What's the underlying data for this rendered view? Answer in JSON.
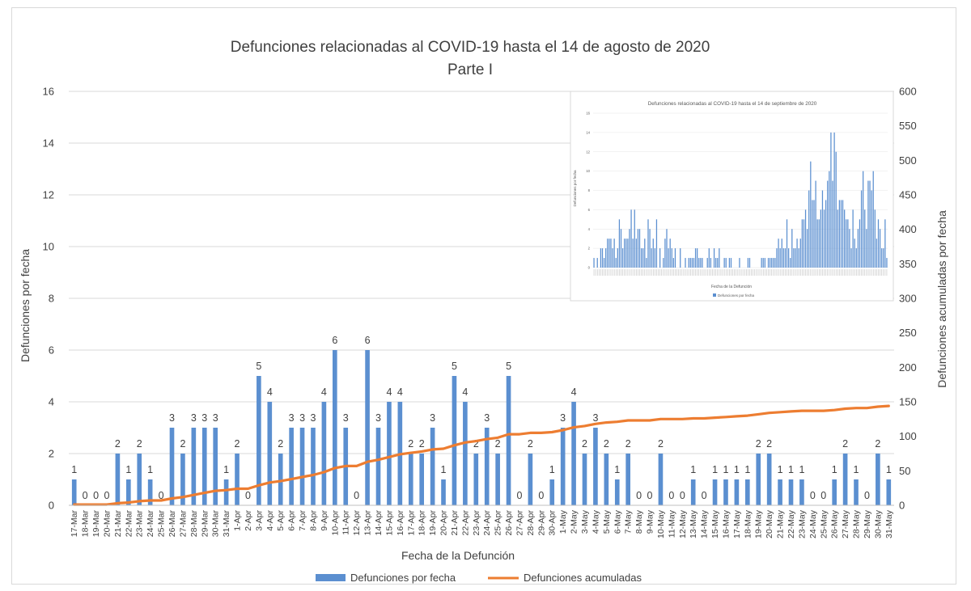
{
  "chart_data": {
    "type": "bar",
    "title": "Defunciones relacionadas al COVID-19 hasta el 14 de agosto de 2020",
    "subtitle": "Parte I",
    "xlabel": "Fecha de la Defunción",
    "ylabel": "Defunciones por fecha",
    "y2label": "Defunciones acumuladas por fecha",
    "ylim": [
      0,
      16
    ],
    "y_ticks": [
      0,
      2,
      4,
      6,
      8,
      10,
      12,
      14,
      16
    ],
    "y2lim": [
      0,
      600
    ],
    "y2_ticks": [
      0,
      50,
      100,
      150,
      200,
      250,
      300,
      350,
      400,
      450,
      500,
      550,
      600
    ],
    "grid": true,
    "legend_position": "bottom",
    "colors": {
      "bars": "#5b8fd0",
      "line": "#ed7d31",
      "grid": "#d9d9d9",
      "text": "#404040"
    },
    "categories": [
      "17-Mar",
      "18-Mar",
      "19-Mar",
      "20-Mar",
      "21-Mar",
      "22-Mar",
      "23-Mar",
      "24-Mar",
      "25-Mar",
      "26-Mar",
      "27-Mar",
      "28-Mar",
      "29-Mar",
      "30-Mar",
      "31-Mar",
      "1-Apr",
      "2-Apr",
      "3-Apr",
      "4-Apr",
      "5-Apr",
      "6-Apr",
      "7-Apr",
      "8-Apr",
      "9-Apr",
      "10-Apr",
      "11-Apr",
      "12-Apr",
      "13-Apr",
      "14-Apr",
      "15-Apr",
      "16-Apr",
      "17-Apr",
      "18-Apr",
      "19-Apr",
      "20-Apr",
      "21-Apr",
      "22-Apr",
      "23-Apr",
      "24-Apr",
      "25-Apr",
      "26-Apr",
      "27-Apr",
      "28-Apr",
      "29-Apr",
      "30-Apr",
      "1-May",
      "2-May",
      "3-May",
      "4-May",
      "5-May",
      "6-May",
      "7-May",
      "8-May",
      "9-May",
      "10-May",
      "11-May",
      "12-May",
      "13-May",
      "14-May",
      "15-May",
      "16-May",
      "17-May",
      "18-May",
      "19-May",
      "20-May",
      "21-May",
      "22-May",
      "23-May",
      "24-May",
      "25-May",
      "26-May",
      "27-May",
      "28-May",
      "29-May",
      "30-May",
      "31-May"
    ],
    "series": [
      {
        "name": "Defunciones por fecha",
        "type": "bar",
        "axis": "left",
        "values": [
          1,
          0,
          0,
          0,
          2,
          1,
          2,
          1,
          0,
          3,
          2,
          3,
          3,
          3,
          1,
          2,
          0,
          5,
          4,
          2,
          3,
          3,
          3,
          4,
          6,
          3,
          0,
          6,
          3,
          4,
          4,
          2,
          2,
          3,
          1,
          5,
          4,
          2,
          3,
          2,
          5,
          0,
          2,
          0,
          1,
          3,
          4,
          2,
          3,
          2,
          1,
          2,
          0,
          0,
          2,
          0,
          0,
          1,
          0,
          1,
          1,
          1,
          1,
          2,
          2,
          1,
          1,
          1,
          0,
          0,
          1,
          2,
          1,
          0,
          2,
          1
        ]
      },
      {
        "name": "Defunciones acumuladas",
        "type": "line",
        "axis": "right",
        "values": [
          1,
          1,
          1,
          1,
          3,
          4,
          6,
          7,
          7,
          10,
          12,
          15,
          18,
          21,
          22,
          24,
          24,
          29,
          33,
          35,
          38,
          41,
          44,
          48,
          54,
          57,
          57,
          63,
          66,
          70,
          74,
          76,
          78,
          81,
          82,
          87,
          91,
          93,
          96,
          98,
          103,
          103,
          105,
          105,
          106,
          109,
          113,
          115,
          118,
          120,
          121,
          123,
          123,
          123,
          125,
          125,
          125,
          126,
          126,
          127,
          128,
          129,
          130,
          132,
          134,
          135,
          136,
          137,
          137,
          137,
          138,
          140,
          141,
          141,
          143,
          144
        ]
      }
    ]
  },
  "inset": {
    "title": "Defunciones relacionadas al COVID-19 hasta el 14 de septiembre de 2020",
    "xlabel": "Fecha de la Defunción",
    "ylabel": "Defunciones por fecha",
    "legend": "Defunciones por fecha",
    "y_ticks": [
      0,
      2,
      4,
      6,
      8,
      10,
      12,
      14,
      16
    ],
    "values": [
      1,
      0,
      1,
      0,
      2,
      2,
      1,
      2,
      3,
      3,
      3,
      2,
      3,
      1,
      2,
      5,
      4,
      2,
      3,
      3,
      3,
      4,
      6,
      3,
      6,
      3,
      4,
      4,
      2,
      2,
      3,
      1,
      5,
      4,
      2,
      3,
      2,
      5,
      0,
      2,
      0,
      1,
      3,
      4,
      2,
      3,
      2,
      1,
      2,
      0,
      0,
      2,
      0,
      0,
      1,
      0,
      1,
      1,
      1,
      1,
      2,
      2,
      1,
      1,
      1,
      0,
      0,
      1,
      2,
      1,
      0,
      2,
      1,
      1,
      2,
      0,
      0,
      1,
      1,
      0,
      1,
      1,
      0,
      0,
      0,
      0,
      1,
      0,
      0,
      0,
      0,
      1,
      1,
      0,
      0,
      0,
      0,
      0,
      0,
      1,
      1,
      1,
      0,
      1,
      1,
      1,
      1,
      1,
      2,
      3,
      2,
      3,
      2,
      2,
      5,
      2,
      1,
      4,
      2,
      2,
      3,
      2,
      3,
      5,
      5,
      6,
      4,
      8,
      11,
      7,
      7,
      9,
      5,
      5,
      6,
      8,
      6,
      7,
      9,
      10,
      14,
      9,
      14,
      12,
      6,
      7,
      7,
      7,
      6,
      5,
      5,
      4,
      2,
      6,
      3,
      2,
      4,
      5,
      8,
      10,
      6,
      4,
      9,
      9,
      8,
      10,
      6,
      3,
      5,
      4,
      2,
      2,
      5,
      1
    ],
    "values_note": "approximate values read from small inset"
  }
}
